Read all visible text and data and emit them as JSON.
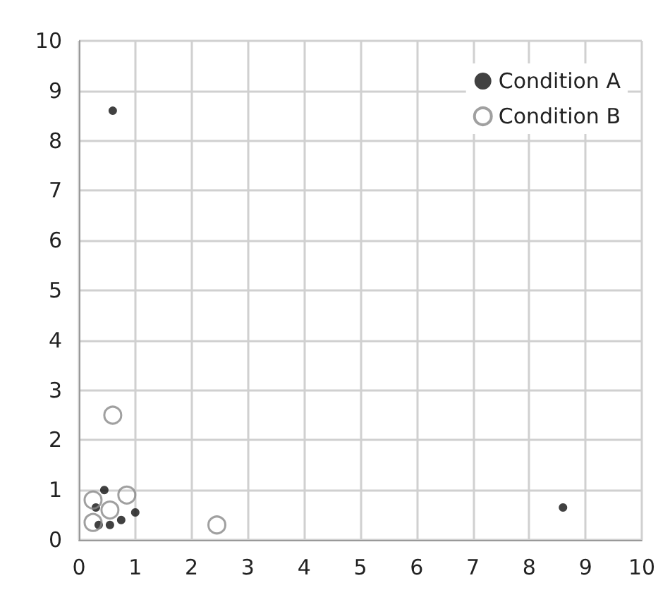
{
  "chart_data": {
    "type": "scatter",
    "series": [
      {
        "name": "Condition A",
        "color": "#111111",
        "x": [
          0.6,
          8.6,
          0.45,
          0.3,
          0.35,
          0.55,
          0.75,
          1.0
        ],
        "values": [
          8.6,
          0.65,
          1.0,
          0.65,
          0.3,
          0.3,
          0.4,
          0.55
        ]
      },
      {
        "name": "Condition B",
        "color": "#888888",
        "x": [
          0.6,
          2.45,
          0.25,
          0.25,
          0.55,
          0.85
        ],
        "values": [
          2.5,
          0.3,
          0.35,
          0.8,
          0.6,
          0.9
        ]
      }
    ],
    "xlim": [
      0,
      10
    ],
    "xticks": [
      0,
      1,
      2,
      3,
      4,
      5,
      6,
      7,
      8,
      9,
      10
    ],
    "ylim": [
      0,
      10
    ],
    "yticks": [
      0,
      1,
      2,
      3,
      4,
      5,
      6,
      7,
      8,
      9,
      10
    ],
    "grid": true,
    "legend": "top right",
    "marker": "circle"
  }
}
